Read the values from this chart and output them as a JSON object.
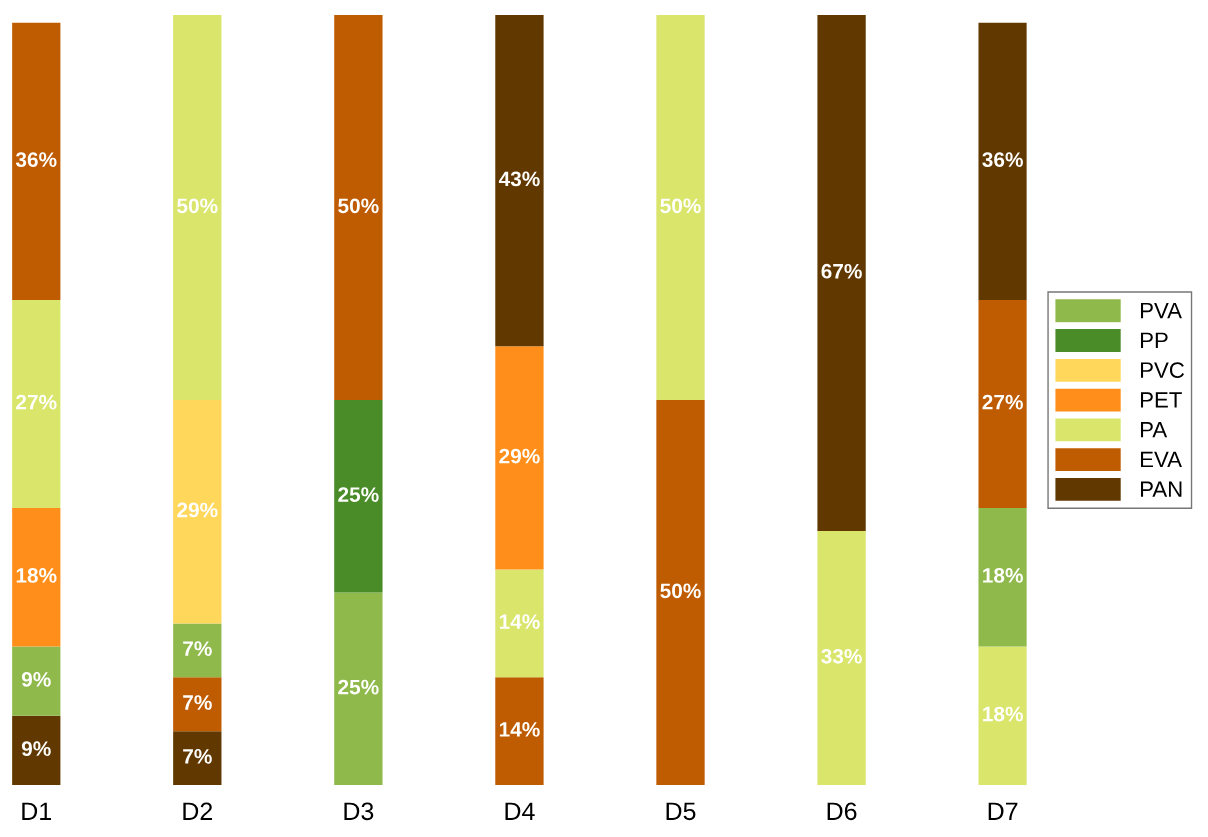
{
  "chart_data": {
    "type": "bar",
    "stacked": true,
    "categories": [
      "D1",
      "D2",
      "D3",
      "D4",
      "D5",
      "D6",
      "D7"
    ],
    "series": [
      {
        "color": "#603800",
        "values": [
          9,
          7,
          null,
          null,
          null,
          null,
          null
        ],
        "value_labels": [
          "9%",
          "7%",
          null,
          null,
          null,
          null,
          null
        ]
      },
      {
        "color": "#bf5b00",
        "values": [
          null,
          7,
          null,
          14,
          50,
          null,
          null
        ],
        "value_labels": [
          null,
          "7%",
          null,
          "14%",
          "50%",
          null,
          null
        ]
      },
      {
        "color": "#d9e56b",
        "values": [
          null,
          null,
          null,
          14,
          null,
          33,
          18
        ],
        "value_labels": [
          null,
          null,
          null,
          "14%",
          null,
          "33%",
          "18%"
        ]
      },
      {
        "name": "PVA",
        "color": "#8fb94b",
        "values": [
          9,
          7,
          25,
          null,
          null,
          null,
          18
        ],
        "value_labels": [
          "9%",
          "7%",
          "25%",
          null,
          null,
          null,
          "18%"
        ]
      },
      {
        "name": "PP",
        "color": "#4a8c28",
        "values": [
          null,
          null,
          25,
          null,
          null,
          null,
          null
        ],
        "value_labels": [
          null,
          null,
          "25%",
          null,
          null,
          null,
          null
        ]
      },
      {
        "name": "PVC",
        "color": "#ffd75a",
        "values": [
          null,
          29,
          null,
          null,
          null,
          null,
          null
        ],
        "value_labels": [
          null,
          "29%",
          null,
          null,
          null,
          null,
          null
        ]
      },
      {
        "name": "PET",
        "color": "#ff8f1a",
        "values": [
          18,
          null,
          null,
          29,
          null,
          null,
          null
        ],
        "value_labels": [
          "18%",
          null,
          null,
          "29%",
          null,
          null,
          null
        ]
      },
      {
        "name": "PA",
        "color": "#d9e56b",
        "values": [
          27,
          50,
          null,
          null,
          50,
          null,
          null
        ],
        "value_labels": [
          "27%",
          "50%",
          null,
          null,
          "50%",
          null,
          null
        ]
      },
      {
        "name": "EVA",
        "color": "#bf5b00",
        "values": [
          36,
          null,
          50,
          null,
          null,
          null,
          27
        ],
        "value_labels": [
          "36%",
          null,
          "50%",
          null,
          null,
          null,
          "27%"
        ]
      },
      {
        "name": "PAN",
        "color": "#603800",
        "values": [
          null,
          null,
          null,
          43,
          null,
          67,
          36
        ],
        "value_labels": [
          null,
          null,
          null,
          "43%",
          null,
          "67%",
          "36%"
        ]
      }
    ],
    "tick_labels": "x",
    "legend": "right",
    "grid": false
  }
}
